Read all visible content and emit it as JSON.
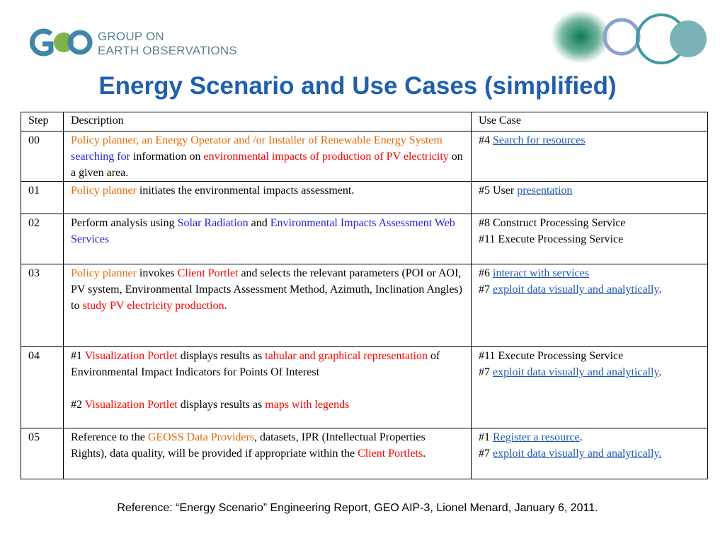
{
  "logo": {
    "line1": "GROUP ON",
    "line2": "EARTH OBSERVATIONS"
  },
  "title": "Energy Scenario and Use Cases (simplified)",
  "table": {
    "header": [
      "Step",
      "Description",
      "Use Case"
    ],
    "rows": [
      [
        "00",
        [
          [
            {
              "text": "Policy planner, an Energy Operator and /or Installer of Renewable Energy System ",
              "color": "#e46c0a"
            },
            {
              "text": "searching for",
              "color": "#1f1fe0"
            },
            {
              "text": " information on "
            },
            {
              "text": "environmental impacts of production of PV electricity",
              "color": "#ff0000"
            },
            {
              "text": " on a given area."
            }
          ]
        ],
        [
          [
            {
              "text": "#4 "
            },
            {
              "text": "Search for resources",
              "link": true
            }
          ]
        ]
      ],
      [
        "01",
        [
          [
            {
              "text": "Policy planner",
              "color": "#e46c0a"
            },
            {
              "text": " initiates the environmental impacts assessment."
            }
          ]
        ],
        [
          [
            {
              "text": "#5 User "
            },
            {
              "text": "presentation",
              "link": true
            }
          ]
        ]
      ],
      [
        "02",
        [
          [
            {
              "text": "Perform analysis using  "
            },
            {
              "text": "Solar Radiation",
              "color": "#1f1fe0"
            },
            {
              "text": " and "
            },
            {
              "text": "Environmental Impacts Assessment Web Services",
              "color": "#1f1fe0"
            }
          ]
        ],
        [
          [
            {
              "text": " #8 Construct Processing Service"
            }
          ],
          [
            {
              "text": "#11 Execute Processing Service"
            }
          ]
        ]
      ],
      [
        "03",
        [
          [
            {
              "text": "Policy planner",
              "color": "#e46c0a"
            },
            {
              "text": " invokes "
            },
            {
              "text": "Client Portlet",
              "color": "#ff0000"
            },
            {
              "text": " and selects the relevant parameters (POI or AOI, PV system, Environmental Impacts Assessment Method, Azimuth, Inclination Angles) to "
            },
            {
              "text": "study PV electricity production",
              "color": "#ff0000"
            },
            {
              "text": "."
            }
          ]
        ],
        [
          [
            {
              "text": "#6 "
            },
            {
              "text": "interact with services",
              "link": true
            }
          ],
          [
            {
              "text": "#7 "
            },
            {
              "text": "exploit data visually and analytically",
              "link": true
            },
            {
              "text": "."
            }
          ]
        ]
      ],
      [
        "04",
        [
          [
            {
              "text": "#1  "
            },
            {
              "text": "Visualization Portlet",
              "color": "#ff0000"
            },
            {
              "text": "  displays results as "
            },
            {
              "text": "tabular and graphical representation",
              "color": "#ff0000"
            },
            {
              "text": " of Environmental Impact Indicators for Points Of Interest"
            }
          ],
          [
            {
              "text": "#2  "
            },
            {
              "text": "Visualization Portlet",
              "color": "#ff0000"
            },
            {
              "text": " displays results as "
            },
            {
              "text": "maps with legends",
              "color": "#ff0000"
            }
          ]
        ],
        [
          [
            {
              "text": "#11 Execute Processing Service"
            }
          ],
          [
            {
              "text": "#7 "
            },
            {
              "text": "exploit data visually and analytically",
              "link": true
            },
            {
              "text": "."
            }
          ]
        ]
      ],
      [
        "05",
        [
          [
            {
              "text": "Reference to the "
            },
            {
              "text": "GEOSS Data Providers",
              "color": "#e46c0a"
            },
            {
              "text": ", datasets, IPR (Intellectual Properties Rights), data quality, will be provided if appropriate within the "
            },
            {
              "text": "Client Portlets",
              "color": "#ff0000"
            },
            {
              "text": "."
            }
          ]
        ],
        [
          [
            {
              "text": "#1 "
            },
            {
              "text": "Register a resource",
              "link": true
            },
            {
              "text": "."
            }
          ],
          [
            {
              "text": "#7 "
            },
            {
              "text": "exploit data visually and analytically.",
              "link": true
            }
          ]
        ]
      ]
    ]
  },
  "footer": "Reference: “Energy Scenario” Engineering Report, GEO AIP-3, Lionel Menard, January 6, 2011."
}
